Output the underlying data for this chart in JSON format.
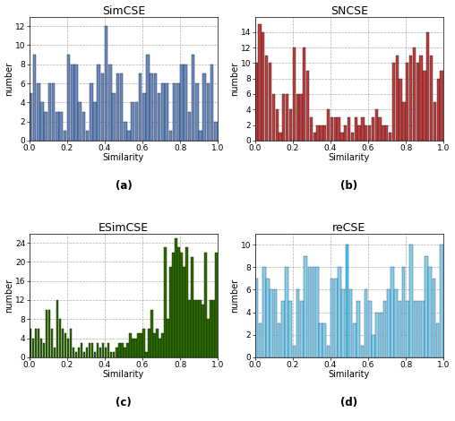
{
  "simcse": {
    "title": "SimCSE",
    "label": "(a)",
    "color": "#6b8cba",
    "edgecolor": "#1a1a4a",
    "ylim": [
      0,
      13
    ],
    "yticks": [
      0,
      2,
      4,
      6,
      8,
      10,
      12
    ],
    "xticks": [
      0.0,
      0.2,
      0.4,
      0.6,
      0.8,
      1.0
    ],
    "values": [
      5,
      9,
      6,
      4,
      3,
      6,
      6,
      3,
      3,
      1,
      9,
      8,
      8,
      4,
      3,
      1,
      6,
      4,
      8,
      7,
      12,
      8,
      5,
      7,
      7,
      2,
      1,
      4,
      4,
      7,
      5,
      9,
      7,
      7,
      5,
      6,
      6,
      1,
      6,
      6,
      8,
      8,
      3,
      9,
      6,
      1,
      7,
      6,
      8,
      2
    ]
  },
  "sncse": {
    "title": "SNCSE",
    "label": "(b)",
    "color": "#b84040",
    "edgecolor": "#3a1010",
    "ylim": [
      0,
      16
    ],
    "yticks": [
      0,
      2,
      4,
      6,
      8,
      10,
      12,
      14
    ],
    "xticks": [
      0.0,
      0.2,
      0.4,
      0.6,
      0.8,
      1.0
    ],
    "values": [
      10,
      15,
      14,
      11,
      10,
      6,
      4,
      1,
      6,
      6,
      4,
      12,
      6,
      6,
      12,
      9,
      3,
      1,
      2,
      2,
      2,
      4,
      3,
      3,
      3,
      1,
      2,
      3,
      1,
      3,
      2,
      3,
      2,
      2,
      3,
      4,
      3,
      2,
      2,
      1,
      10,
      11,
      8,
      5,
      10,
      11,
      12,
      10,
      11,
      9,
      14,
      11,
      5,
      8,
      9
    ]
  },
  "esimcse": {
    "title": "ESimCSE",
    "label": "(c)",
    "color": "#2d6a00",
    "edgecolor": "#0a2000",
    "ylim": [
      0,
      26
    ],
    "yticks": [
      0,
      4,
      8,
      12,
      16,
      20,
      24
    ],
    "xticks": [
      0.0,
      0.2,
      0.4,
      0.6,
      0.8,
      1.0
    ],
    "values": [
      6,
      4,
      6,
      6,
      4,
      3,
      10,
      10,
      6,
      2,
      12,
      8,
      6,
      5,
      4,
      6,
      2,
      1,
      2,
      3,
      1,
      2,
      3,
      3,
      1,
      3,
      2,
      3,
      2,
      3,
      1,
      1,
      2,
      3,
      3,
      2,
      3,
      5,
      4,
      4,
      5,
      5,
      6,
      1,
      6,
      10,
      5,
      6,
      4,
      5,
      23,
      8,
      19,
      22,
      25,
      23,
      22,
      19,
      23,
      12,
      21,
      12,
      12,
      12,
      11,
      22,
      8,
      12,
      12,
      22
    ]
  },
  "recse": {
    "title": "reCSE",
    "label": "(d)",
    "color": "#87ceeb",
    "highlight_color": "#40c8f0",
    "edgecolor": "#1a4a6a",
    "ylim": [
      0,
      11
    ],
    "yticks": [
      0,
      2,
      4,
      6,
      8,
      10
    ],
    "xticks": [
      0.0,
      0.2,
      0.4,
      0.6,
      0.8,
      1.0
    ],
    "highlight_index": 24,
    "values": [
      7,
      3,
      8,
      7,
      6,
      6,
      3,
      5,
      8,
      5,
      1,
      6,
      5,
      9,
      8,
      8,
      8,
      3,
      3,
      1,
      7,
      7,
      8,
      6,
      10,
      6,
      3,
      5,
      1,
      6,
      5,
      2,
      4,
      4,
      5,
      6,
      8,
      6,
      5,
      8,
      5,
      10,
      5,
      5,
      5,
      9,
      8,
      7,
      3,
      10
    ]
  }
}
